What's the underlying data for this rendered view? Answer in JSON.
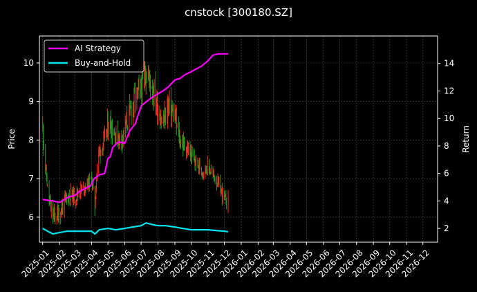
{
  "chart_data": {
    "type": "line",
    "title": "cnstock [300180.SZ]",
    "ylabel_left": "Price",
    "ylabel_right": "Return",
    "ylim_left": [
      5.35,
      10.7
    ],
    "ylim_right": [
      1.0,
      16.0
    ],
    "yticks_left": [
      6,
      7,
      8,
      9,
      10
    ],
    "yticks_right": [
      2,
      4,
      6,
      8,
      10,
      12,
      14
    ],
    "xlim": [
      "2024-12-26",
      "2026-12-28"
    ],
    "x_ticks": [
      "2025-01",
      "2025-02",
      "2025-03",
      "2025-04",
      "2025-05",
      "2025-06",
      "2025-07",
      "2025-08",
      "2025-09",
      "2025-10",
      "2025-11",
      "2025-12",
      "2026-01",
      "2026-02",
      "2026-03",
      "2026-04",
      "2026-05",
      "2026-06",
      "2026-07",
      "2026-08",
      "2026-09",
      "2026-10",
      "2026-11",
      "2026-12"
    ],
    "grid": true,
    "legend_placement": "top-left",
    "colors": {
      "up": "#ff2a1a",
      "down": "#1e9e1e",
      "ai": "#ff00ff",
      "bh": "#00e5ee"
    },
    "price_keypoints": [
      [
        "2025-01-01",
        8.3
      ],
      [
        "2025-01-06",
        7.3
      ],
      [
        "2025-01-12",
        6.5
      ],
      [
        "2025-01-16",
        6.2
      ],
      [
        "2025-01-22",
        6.0
      ],
      [
        "2025-02-01",
        6.1
      ],
      [
        "2025-02-10",
        6.4
      ],
      [
        "2025-02-20",
        6.6
      ],
      [
        "2025-03-01",
        6.5
      ],
      [
        "2025-03-10",
        6.7
      ],
      [
        "2025-03-20",
        6.8
      ],
      [
        "2025-04-01",
        7.0
      ],
      [
        "2025-04-07",
        6.3
      ],
      [
        "2025-04-12",
        7.6
      ],
      [
        "2025-04-25",
        8.0
      ],
      [
        "2025-05-03",
        8.5
      ],
      [
        "2025-05-12",
        8.2
      ],
      [
        "2025-05-25",
        8.0
      ],
      [
        "2025-06-08",
        8.6
      ],
      [
        "2025-06-20",
        9.1
      ],
      [
        "2025-07-01",
        9.3
      ],
      [
        "2025-07-10",
        9.8
      ],
      [
        "2025-07-22",
        9.4
      ],
      [
        "2025-08-01",
        8.8
      ],
      [
        "2025-08-10",
        8.4
      ],
      [
        "2025-08-20",
        8.9
      ],
      [
        "2025-09-01",
        8.6
      ],
      [
        "2025-09-10",
        8.0
      ],
      [
        "2025-09-22",
        7.8
      ],
      [
        "2025-10-01",
        7.6
      ],
      [
        "2025-10-10",
        7.4
      ],
      [
        "2025-10-22",
        7.2
      ],
      [
        "2025-11-01",
        7.3
      ],
      [
        "2025-11-10",
        7.1
      ],
      [
        "2025-11-18",
        6.9
      ],
      [
        "2025-11-25",
        6.7
      ],
      [
        "2025-12-02",
        6.4
      ],
      [
        "2025-12-08",
        6.5
      ]
    ],
    "series": [
      {
        "name": "AI Strategy",
        "points": [
          [
            "2025-01-01",
            4.1
          ],
          [
            "2025-01-20",
            4.0
          ],
          [
            "2025-02-01",
            3.9
          ],
          [
            "2025-02-10",
            4.1
          ],
          [
            "2025-02-18",
            4.3
          ],
          [
            "2025-03-01",
            4.4
          ],
          [
            "2025-03-10",
            4.7
          ],
          [
            "2025-03-20",
            4.9
          ],
          [
            "2025-03-30",
            5.1
          ],
          [
            "2025-04-05",
            5.6
          ],
          [
            "2025-04-15",
            5.9
          ],
          [
            "2025-04-25",
            6.0
          ],
          [
            "2025-05-01",
            7.1
          ],
          [
            "2025-05-05",
            7.2
          ],
          [
            "2025-05-10",
            7.9
          ],
          [
            "2025-05-20",
            8.3
          ],
          [
            "2025-06-01",
            8.2
          ],
          [
            "2025-06-10",
            9.1
          ],
          [
            "2025-06-20",
            9.6
          ],
          [
            "2025-07-01",
            10.9
          ],
          [
            "2025-07-10",
            11.2
          ],
          [
            "2025-07-20",
            11.5
          ],
          [
            "2025-08-01",
            11.8
          ],
          [
            "2025-08-10",
            12.0
          ],
          [
            "2025-08-20",
            12.3
          ],
          [
            "2025-09-01",
            12.8
          ],
          [
            "2025-09-10",
            12.9
          ],
          [
            "2025-09-20",
            13.2
          ],
          [
            "2025-10-01",
            13.4
          ],
          [
            "2025-10-10",
            13.6
          ],
          [
            "2025-10-20",
            13.8
          ],
          [
            "2025-11-01",
            14.2
          ],
          [
            "2025-11-10",
            14.6
          ],
          [
            "2025-11-20",
            14.7
          ],
          [
            "2025-12-08",
            14.7
          ]
        ]
      },
      {
        "name": "Buy-and-Hold",
        "points": [
          [
            "2025-01-01",
            2.0
          ],
          [
            "2025-01-10",
            1.8
          ],
          [
            "2025-01-20",
            1.6
          ],
          [
            "2025-02-01",
            1.7
          ],
          [
            "2025-02-15",
            1.8
          ],
          [
            "2025-03-01",
            1.8
          ],
          [
            "2025-03-15",
            1.8
          ],
          [
            "2025-04-01",
            1.8
          ],
          [
            "2025-04-07",
            1.6
          ],
          [
            "2025-04-15",
            1.9
          ],
          [
            "2025-05-01",
            2.0
          ],
          [
            "2025-05-15",
            1.9
          ],
          [
            "2025-06-01",
            2.0
          ],
          [
            "2025-06-15",
            2.1
          ],
          [
            "2025-07-01",
            2.2
          ],
          [
            "2025-07-10",
            2.4
          ],
          [
            "2025-07-20",
            2.3
          ],
          [
            "2025-08-01",
            2.2
          ],
          [
            "2025-08-15",
            2.2
          ],
          [
            "2025-09-01",
            2.1
          ],
          [
            "2025-09-15",
            2.0
          ],
          [
            "2025-10-01",
            1.9
          ],
          [
            "2025-10-15",
            1.9
          ],
          [
            "2025-11-01",
            1.9
          ],
          [
            "2025-11-15",
            1.85
          ],
          [
            "2025-12-01",
            1.8
          ],
          [
            "2025-12-08",
            1.75
          ]
        ]
      }
    ]
  }
}
